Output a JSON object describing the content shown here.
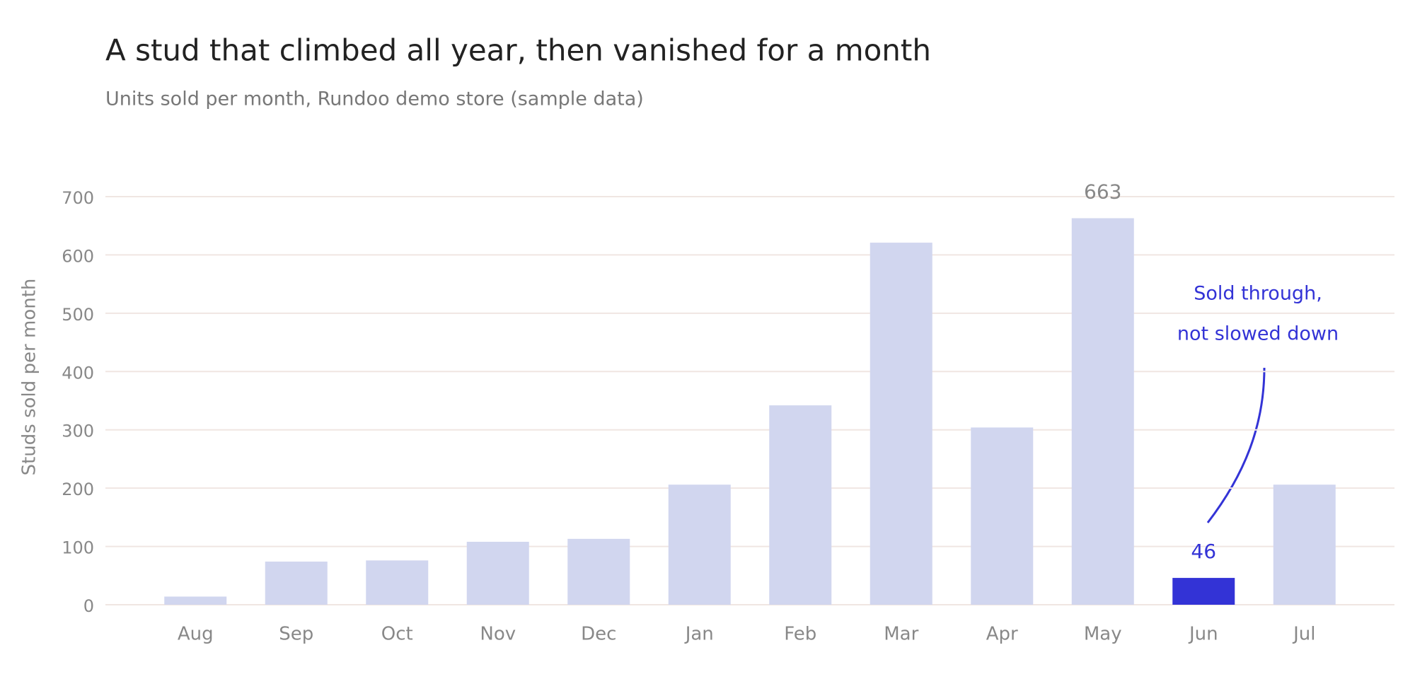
{
  "chart_data": {
    "type": "bar",
    "title": "A stud that climbed all year, then vanished for a month",
    "subtitle": "Units sold per month, Rundoo demo store (sample data)",
    "y_label": "Studs sold per month",
    "categories": [
      "Aug",
      "Sep",
      "Oct",
      "Nov",
      "Dec",
      "Jan",
      "Feb",
      "Mar",
      "Apr",
      "May",
      "Jun",
      "Jul"
    ],
    "values": [
      14,
      74,
      76,
      108,
      113,
      206,
      342,
      621,
      304,
      663,
      46,
      206
    ],
    "colors": [
      "#d1d6ef",
      "#d1d6ef",
      "#d1d6ef",
      "#d1d6ef",
      "#d1d6ef",
      "#d1d6ef",
      "#d1d6ef",
      "#d1d6ef",
      "#d1d6ef",
      "#d1d6ef",
      "#3333d6",
      "#d1d6ef"
    ],
    "show_value": [
      false,
      false,
      false,
      false,
      false,
      false,
      false,
      false,
      false,
      true,
      true,
      false
    ],
    "annotation": {
      "lines": [
        "Sold through,",
        "not slowed down"
      ],
      "color": "#3333d6"
    },
    "ylim": [
      0,
      700
    ],
    "yticks": [
      0,
      100,
      200,
      300,
      400,
      500,
      600,
      700
    ],
    "grid": true
  }
}
